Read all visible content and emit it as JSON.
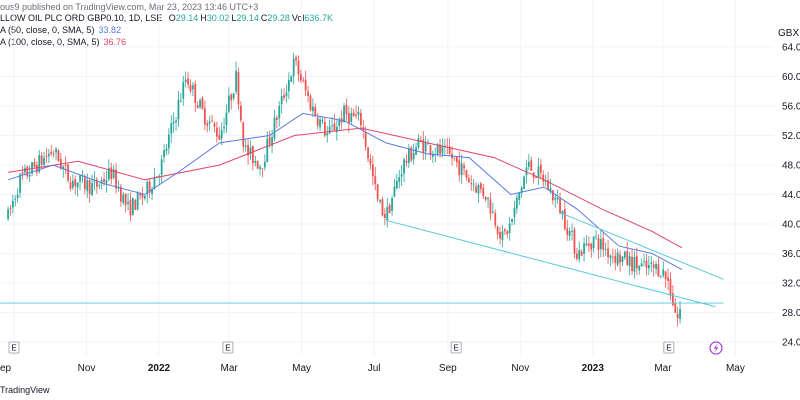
{
  "header": {
    "published": "ous9 published on TradingView.com, Mar 23, 2023 13:46 UTC+3"
  },
  "legend": {
    "symbol_line": "LLOW OIL PLC ORD GBP0.10, 1D, LSE",
    "ohlc": [
      {
        "label": "O",
        "value": "29.14"
      },
      {
        "label": "H",
        "value": "30.02"
      },
      {
        "label": "L",
        "value": "29.14"
      },
      {
        "label": "C",
        "value": "29.28"
      },
      {
        "label": "Vol",
        "value": "636.7K"
      }
    ],
    "ma50": {
      "label": "A (50, close, 0, SMA, 5)",
      "value": "33.82"
    },
    "ma100": {
      "label": "A (100, close, 0, SMA, 5)",
      "value": "36.76"
    }
  },
  "colors": {
    "up": "#26a69a",
    "down": "#ef5350",
    "ma50": "#5b7be0",
    "ma100": "#e0466a",
    "trend": "#58c9da",
    "grid": "#f0f3fa",
    "ohlc_value": "#26a69a"
  },
  "footer": {
    "brand": "TradingView"
  },
  "chart_data": {
    "type": "candlestick",
    "axis_title": "GBX",
    "ylim": [
      24,
      64
    ],
    "y_ticks": [
      "64.00",
      "60.00",
      "56.00",
      "52.00",
      "48.00",
      "44.00",
      "40.00",
      "36.00",
      "32.00",
      "28.00",
      "24.00"
    ],
    "x_ticks": [
      {
        "label": "ep",
        "bold": false
      },
      {
        "label": "Nov",
        "bold": false
      },
      {
        "label": "2022",
        "bold": true
      },
      {
        "label": "Mar",
        "bold": false
      },
      {
        "label": "May",
        "bold": false
      },
      {
        "label": "Jul",
        "bold": false
      },
      {
        "label": "Sep",
        "bold": false
      },
      {
        "label": "Nov",
        "bold": false
      },
      {
        "label": "2023",
        "bold": true
      },
      {
        "label": "Mar",
        "bold": false
      },
      {
        "label": "May",
        "bold": false
      }
    ],
    "events": [
      {
        "label": "E",
        "date": "2021-09-01"
      },
      {
        "label": "E",
        "date": "2022-02-28"
      },
      {
        "label": "E",
        "date": "2022-09-08"
      },
      {
        "label": "E",
        "date": "2023-03-06"
      }
    ],
    "price_path": [
      {
        "date": "2021-08-27",
        "close": 41
      },
      {
        "date": "2021-09-06",
        "close": 46
      },
      {
        "date": "2021-09-20",
        "close": 48
      },
      {
        "date": "2021-10-04",
        "close": 50
      },
      {
        "date": "2021-10-18",
        "close": 46
      },
      {
        "date": "2021-11-08",
        "close": 45
      },
      {
        "date": "2021-11-22",
        "close": 47
      },
      {
        "date": "2021-12-06",
        "close": 42
      },
      {
        "date": "2021-12-20",
        "close": 44
      },
      {
        "date": "2022-01-03",
        "close": 48
      },
      {
        "date": "2022-01-17",
        "close": 56
      },
      {
        "date": "2022-01-24",
        "close": 60
      },
      {
        "date": "2022-02-07",
        "close": 55
      },
      {
        "date": "2022-02-21",
        "close": 52
      },
      {
        "date": "2022-03-07",
        "close": 60
      },
      {
        "date": "2022-03-14",
        "close": 50
      },
      {
        "date": "2022-03-28",
        "close": 48
      },
      {
        "date": "2022-04-11",
        "close": 55
      },
      {
        "date": "2022-04-25",
        "close": 62
      },
      {
        "date": "2022-05-09",
        "close": 56
      },
      {
        "date": "2022-05-23",
        "close": 52
      },
      {
        "date": "2022-06-06",
        "close": 55
      },
      {
        "date": "2022-06-20",
        "close": 54
      },
      {
        "date": "2022-07-04",
        "close": 43
      },
      {
        "date": "2022-07-11",
        "close": 41
      },
      {
        "date": "2022-07-25",
        "close": 48
      },
      {
        "date": "2022-08-08",
        "close": 51
      },
      {
        "date": "2022-08-22",
        "close": 50
      },
      {
        "date": "2022-09-05",
        "close": 49
      },
      {
        "date": "2022-09-19",
        "close": 46
      },
      {
        "date": "2022-10-03",
        "close": 44
      },
      {
        "date": "2022-10-17",
        "close": 38
      },
      {
        "date": "2022-10-24",
        "close": 40
      },
      {
        "date": "2022-11-07",
        "close": 48
      },
      {
        "date": "2022-11-21",
        "close": 46
      },
      {
        "date": "2022-12-05",
        "close": 42
      },
      {
        "date": "2022-12-19",
        "close": 36
      },
      {
        "date": "2023-01-02",
        "close": 38
      },
      {
        "date": "2023-01-16",
        "close": 36
      },
      {
        "date": "2023-01-30",
        "close": 35
      },
      {
        "date": "2023-02-13",
        "close": 34
      },
      {
        "date": "2023-02-27",
        "close": 34
      },
      {
        "date": "2023-03-06",
        "close": 32
      },
      {
        "date": "2023-03-13",
        "close": 27
      },
      {
        "date": "2023-03-17",
        "close": 29.28
      }
    ],
    "ma50_path": [
      {
        "date": "2021-08-27",
        "value": 46
      },
      {
        "date": "2021-10-04",
        "value": 48
      },
      {
        "date": "2021-11-15",
        "value": 45.5
      },
      {
        "date": "2021-12-20",
        "value": 44
      },
      {
        "date": "2022-01-17",
        "value": 47
      },
      {
        "date": "2022-02-21",
        "value": 51
      },
      {
        "date": "2022-04-04",
        "value": 52
      },
      {
        "date": "2022-05-02",
        "value": 55
      },
      {
        "date": "2022-06-06",
        "value": 54
      },
      {
        "date": "2022-07-11",
        "value": 51
      },
      {
        "date": "2022-08-15",
        "value": 49.5
      },
      {
        "date": "2022-09-19",
        "value": 49
      },
      {
        "date": "2022-10-24",
        "value": 44
      },
      {
        "date": "2022-11-21",
        "value": 45
      },
      {
        "date": "2022-12-19",
        "value": 42
      },
      {
        "date": "2023-01-23",
        "value": 37
      },
      {
        "date": "2023-02-20",
        "value": 36
      },
      {
        "date": "2023-03-17",
        "value": 33.82
      }
    ],
    "ma100_path": [
      {
        "date": "2021-08-27",
        "value": 47
      },
      {
        "date": "2021-10-25",
        "value": 48.5
      },
      {
        "date": "2021-12-20",
        "value": 46
      },
      {
        "date": "2022-02-21",
        "value": 48
      },
      {
        "date": "2022-04-25",
        "value": 52
      },
      {
        "date": "2022-06-20",
        "value": 53
      },
      {
        "date": "2022-08-15",
        "value": 51
      },
      {
        "date": "2022-10-10",
        "value": 49
      },
      {
        "date": "2022-11-21",
        "value": 46
      },
      {
        "date": "2023-01-09",
        "value": 42
      },
      {
        "date": "2023-02-20",
        "value": 39
      },
      {
        "date": "2023-03-17",
        "value": 36.76
      }
    ],
    "trend_lines": [
      {
        "from": {
          "date": "2022-07-11",
          "value": 40.5
        },
        "to": {
          "date": "2023-04-14",
          "value": 28.8
        }
      },
      {
        "from": {
          "date": "2022-12-05",
          "value": 41.5
        },
        "to": {
          "date": "2023-04-21",
          "value": 32.5
        }
      },
      {
        "from": {
          "date": "2021-08-27",
          "value": 29.28
        },
        "to": {
          "date": "2023-04-21",
          "value": 29.28
        }
      }
    ]
  }
}
